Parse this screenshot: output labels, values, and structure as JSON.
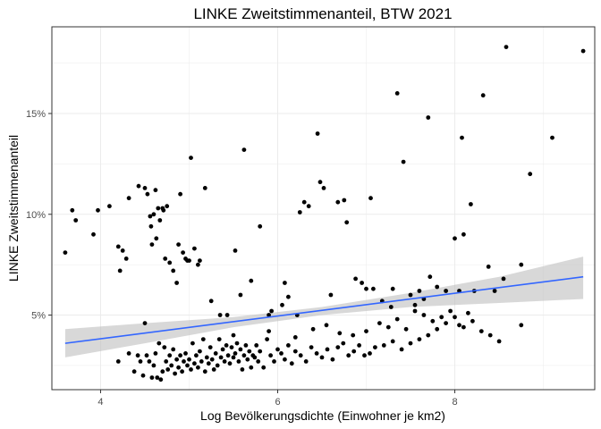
{
  "chart_data": {
    "type": "scatter",
    "title": "LINKE Zweitstimmenanteil, BTW 2021",
    "xlabel": "Log Bevölkerungsdichte (Einwohner je km2)",
    "ylabel": "LINKE Zweitstimmenanteil",
    "xlim": [
      3.45,
      9.58
    ],
    "ylim": [
      0.013,
      0.193
    ],
    "x_ticks": [
      4,
      6,
      8
    ],
    "x_tick_labels": [
      "4",
      "6",
      "8"
    ],
    "y_ticks": [
      0.05,
      0.1,
      0.15
    ],
    "y_tick_labels": [
      "5%",
      "10%",
      "15%"
    ],
    "grid": true,
    "legend": "none",
    "point_color": "#000000",
    "line_color": "#3366FF",
    "band_color": "#BEBEBE",
    "points": [
      [
        3.6,
        0.081
      ],
      [
        3.68,
        0.102
      ],
      [
        3.72,
        0.097
      ],
      [
        3.92,
        0.09
      ],
      [
        3.97,
        0.102
      ],
      [
        4.1,
        0.104
      ],
      [
        4.2,
        0.084
      ],
      [
        4.22,
        0.072
      ],
      [
        4.25,
        0.082
      ],
      [
        4.29,
        0.078
      ],
      [
        4.32,
        0.108
      ],
      [
        4.43,
        0.114
      ],
      [
        4.5,
        0.113
      ],
      [
        4.53,
        0.11
      ],
      [
        4.56,
        0.099
      ],
      [
        4.57,
        0.094
      ],
      [
        4.58,
        0.085
      ],
      [
        4.6,
        0.1
      ],
      [
        4.62,
        0.112
      ],
      [
        4.63,
        0.088
      ],
      [
        4.65,
        0.103
      ],
      [
        4.67,
        0.097
      ],
      [
        4.7,
        0.103
      ],
      [
        4.71,
        0.102
      ],
      [
        4.73,
        0.078
      ],
      [
        4.75,
        0.104
      ],
      [
        4.78,
        0.076
      ],
      [
        4.82,
        0.072
      ],
      [
        4.86,
        0.066
      ],
      [
        4.88,
        0.085
      ],
      [
        4.9,
        0.11
      ],
      [
        4.93,
        0.081
      ],
      [
        4.96,
        0.078
      ],
      [
        4.98,
        0.077
      ],
      [
        5.0,
        0.077
      ],
      [
        5.02,
        0.128
      ],
      [
        5.06,
        0.083
      ],
      [
        5.1,
        0.075
      ],
      [
        5.12,
        0.077
      ],
      [
        5.18,
        0.113
      ],
      [
        5.25,
        0.057
      ],
      [
        5.35,
        0.05
      ],
      [
        5.43,
        0.05
      ],
      [
        5.52,
        0.082
      ],
      [
        5.58,
        0.06
      ],
      [
        5.62,
        0.132
      ],
      [
        5.7,
        0.067
      ],
      [
        5.8,
        0.094
      ],
      [
        5.9,
        0.05
      ],
      [
        5.93,
        0.052
      ],
      [
        6.05,
        0.055
      ],
      [
        6.08,
        0.066
      ],
      [
        6.12,
        0.059
      ],
      [
        6.22,
        0.05
      ],
      [
        6.25,
        0.101
      ],
      [
        6.3,
        0.106
      ],
      [
        6.35,
        0.104
      ],
      [
        6.45,
        0.14
      ],
      [
        6.48,
        0.116
      ],
      [
        6.52,
        0.113
      ],
      [
        6.6,
        0.06
      ],
      [
        6.68,
        0.106
      ],
      [
        6.75,
        0.107
      ],
      [
        6.78,
        0.096
      ],
      [
        6.88,
        0.068
      ],
      [
        6.95,
        0.066
      ],
      [
        7.0,
        0.063
      ],
      [
        7.05,
        0.108
      ],
      [
        7.08,
        0.063
      ],
      [
        7.18,
        0.057
      ],
      [
        7.28,
        0.054
      ],
      [
        7.3,
        0.063
      ],
      [
        7.35,
        0.16
      ],
      [
        7.42,
        0.126
      ],
      [
        7.5,
        0.06
      ],
      [
        7.55,
        0.055
      ],
      [
        7.6,
        0.062
      ],
      [
        7.65,
        0.058
      ],
      [
        7.7,
        0.148
      ],
      [
        7.72,
        0.069
      ],
      [
        7.8,
        0.064
      ],
      [
        7.9,
        0.062
      ],
      [
        8.0,
        0.088
      ],
      [
        8.05,
        0.062
      ],
      [
        8.08,
        0.138
      ],
      [
        8.1,
        0.09
      ],
      [
        8.18,
        0.105
      ],
      [
        8.22,
        0.062
      ],
      [
        8.32,
        0.159
      ],
      [
        8.38,
        0.074
      ],
      [
        8.45,
        0.062
      ],
      [
        8.55,
        0.068
      ],
      [
        8.58,
        0.183
      ],
      [
        8.75,
        0.075
      ],
      [
        8.85,
        0.12
      ],
      [
        9.1,
        0.138
      ],
      [
        9.45,
        0.181
      ],
      [
        4.2,
        0.027
      ],
      [
        4.32,
        0.031
      ],
      [
        4.38,
        0.022
      ],
      [
        4.42,
        0.03
      ],
      [
        4.45,
        0.027
      ],
      [
        4.48,
        0.02
      ],
      [
        4.5,
        0.046
      ],
      [
        4.52,
        0.03
      ],
      [
        4.55,
        0.027
      ],
      [
        4.58,
        0.019
      ],
      [
        4.6,
        0.025
      ],
      [
        4.62,
        0.031
      ],
      [
        4.64,
        0.019
      ],
      [
        4.66,
        0.036
      ],
      [
        4.68,
        0.018
      ],
      [
        4.7,
        0.022
      ],
      [
        4.72,
        0.034
      ],
      [
        4.74,
        0.027
      ],
      [
        4.76,
        0.023
      ],
      [
        4.78,
        0.03
      ],
      [
        4.8,
        0.025
      ],
      [
        4.82,
        0.033
      ],
      [
        4.84,
        0.021
      ],
      [
        4.86,
        0.028
      ],
      [
        4.88,
        0.024
      ],
      [
        4.9,
        0.03
      ],
      [
        4.92,
        0.022
      ],
      [
        4.94,
        0.027
      ],
      [
        4.96,
        0.031
      ],
      [
        4.98,
        0.025
      ],
      [
        5.0,
        0.028
      ],
      [
        5.02,
        0.023
      ],
      [
        5.04,
        0.036
      ],
      [
        5.06,
        0.026
      ],
      [
        5.08,
        0.03
      ],
      [
        5.1,
        0.024
      ],
      [
        5.12,
        0.032
      ],
      [
        5.14,
        0.027
      ],
      [
        5.16,
        0.038
      ],
      [
        5.18,
        0.022
      ],
      [
        5.2,
        0.029
      ],
      [
        5.22,
        0.026
      ],
      [
        5.24,
        0.034
      ],
      [
        5.26,
        0.028
      ],
      [
        5.28,
        0.023
      ],
      [
        5.3,
        0.031
      ],
      [
        5.32,
        0.025
      ],
      [
        5.34,
        0.038
      ],
      [
        5.36,
        0.029
      ],
      [
        5.38,
        0.033
      ],
      [
        5.4,
        0.027
      ],
      [
        5.42,
        0.035
      ],
      [
        5.44,
        0.03
      ],
      [
        5.46,
        0.026
      ],
      [
        5.48,
        0.034
      ],
      [
        5.5,
        0.029
      ],
      [
        5.52,
        0.031
      ],
      [
        5.54,
        0.036
      ],
      [
        5.56,
        0.027
      ],
      [
        5.58,
        0.033
      ],
      [
        5.6,
        0.023
      ],
      [
        5.62,
        0.03
      ],
      [
        5.64,
        0.035
      ],
      [
        5.66,
        0.028
      ],
      [
        5.68,
        0.032
      ],
      [
        5.7,
        0.024
      ],
      [
        5.72,
        0.03
      ],
      [
        5.74,
        0.029
      ],
      [
        5.76,
        0.035
      ],
      [
        5.78,
        0.027
      ],
      [
        5.8,
        0.032
      ],
      [
        5.84,
        0.024
      ],
      [
        5.88,
        0.038
      ],
      [
        5.92,
        0.03
      ],
      [
        5.96,
        0.027
      ],
      [
        6.0,
        0.033
      ],
      [
        6.04,
        0.031
      ],
      [
        6.08,
        0.028
      ],
      [
        6.12,
        0.035
      ],
      [
        6.16,
        0.026
      ],
      [
        6.2,
        0.032
      ],
      [
        6.26,
        0.03
      ],
      [
        6.32,
        0.027
      ],
      [
        6.38,
        0.034
      ],
      [
        6.44,
        0.031
      ],
      [
        6.5,
        0.029
      ],
      [
        6.56,
        0.033
      ],
      [
        6.62,
        0.028
      ],
      [
        6.68,
        0.034
      ],
      [
        6.74,
        0.036
      ],
      [
        6.8,
        0.03
      ],
      [
        6.86,
        0.032
      ],
      [
        6.92,
        0.035
      ],
      [
        6.98,
        0.03
      ],
      [
        7.04,
        0.031
      ],
      [
        7.1,
        0.034
      ],
      [
        7.2,
        0.035
      ],
      [
        7.3,
        0.037
      ],
      [
        7.4,
        0.033
      ],
      [
        7.5,
        0.036
      ],
      [
        7.6,
        0.038
      ],
      [
        7.7,
        0.04
      ],
      [
        7.8,
        0.043
      ],
      [
        7.9,
        0.046
      ],
      [
        8.0,
        0.049
      ],
      [
        8.1,
        0.044
      ],
      [
        8.2,
        0.047
      ],
      [
        8.3,
        0.042
      ],
      [
        8.4,
        0.04
      ],
      [
        8.5,
        0.037
      ],
      [
        8.75,
        0.045
      ],
      [
        5.5,
        0.04
      ],
      [
        5.9,
        0.042
      ],
      [
        6.2,
        0.039
      ],
      [
        6.4,
        0.043
      ],
      [
        6.55,
        0.045
      ],
      [
        6.7,
        0.041
      ],
      [
        6.85,
        0.04
      ],
      [
        7.0,
        0.042
      ],
      [
        7.15,
        0.046
      ],
      [
        7.25,
        0.044
      ],
      [
        7.35,
        0.048
      ],
      [
        7.45,
        0.043
      ],
      [
        7.55,
        0.052
      ],
      [
        7.65,
        0.05
      ],
      [
        7.75,
        0.047
      ],
      [
        7.85,
        0.049
      ],
      [
        7.95,
        0.052
      ],
      [
        8.05,
        0.045
      ],
      [
        8.15,
        0.051
      ]
    ],
    "fit_line": {
      "x": [
        3.6,
        9.45
      ],
      "y": [
        0.036,
        0.069
      ]
    },
    "fit_band": {
      "x": [
        3.6,
        4.5,
        5.5,
        6.5,
        7.5,
        8.5,
        9.45
      ],
      "lower": [
        0.029,
        0.036,
        0.044,
        0.05,
        0.054,
        0.056,
        0.058
      ],
      "upper": [
        0.043,
        0.046,
        0.049,
        0.054,
        0.061,
        0.069,
        0.079
      ]
    }
  }
}
